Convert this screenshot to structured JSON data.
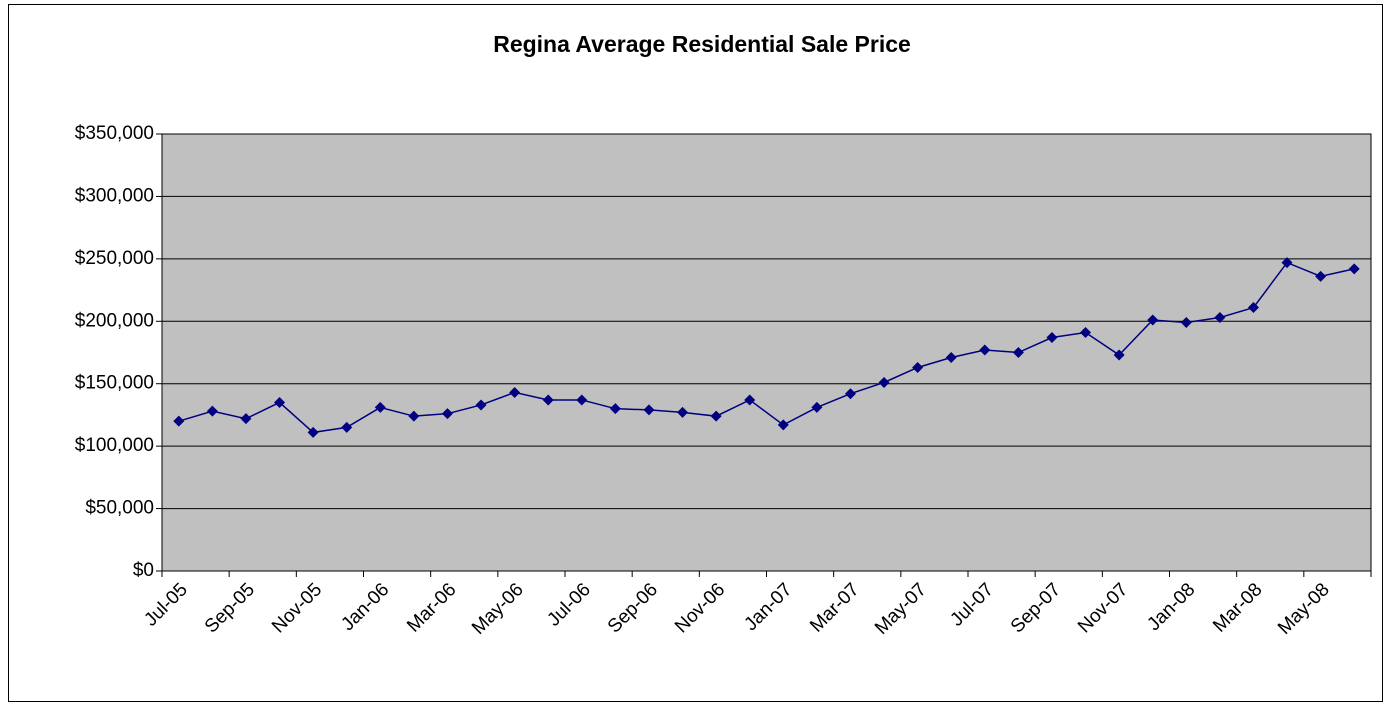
{
  "chart_data": {
    "type": "line",
    "title": "Regina Average Residential Sale Price",
    "categories": [
      "Jul-05",
      null,
      "Sep-05",
      null,
      "Nov-05",
      null,
      "Jan-06",
      null,
      "Mar-06",
      null,
      "May-06",
      null,
      "Jul-06",
      null,
      "Sep-06",
      null,
      "Nov-06",
      null,
      "Jan-07",
      null,
      "Mar-07",
      null,
      "May-07",
      null,
      "Jul-07",
      null,
      "Sep-07",
      null,
      "Nov-07",
      null,
      "Jan-08",
      null,
      "Mar-08",
      null,
      "May-08",
      null
    ],
    "series": [
      {
        "color": "#000080",
        "values": [
          120000,
          128000,
          122000,
          135000,
          111000,
          115000,
          131000,
          124000,
          126000,
          133000,
          143000,
          137000,
          137000,
          130000,
          129000,
          127000,
          124000,
          137000,
          117000,
          131000,
          142000,
          151000,
          163000,
          171000,
          177000,
          175000,
          187000,
          191000,
          173000,
          201000,
          199000,
          203000,
          211000,
          247000,
          236000,
          242000
        ]
      }
    ],
    "ylim": [
      0,
      350000
    ],
    "yticks": [
      {
        "value": 0,
        "label": "$0"
      },
      {
        "value": 50000,
        "label": "$50,000"
      },
      {
        "value": 100000,
        "label": "$100,000"
      },
      {
        "value": 150000,
        "label": "$150,000"
      },
      {
        "value": 200000,
        "label": "$200,000"
      },
      {
        "value": 250000,
        "label": "$250,000"
      },
      {
        "value": 300000,
        "label": "$300,000"
      },
      {
        "value": 350000,
        "label": "$350,000"
      }
    ],
    "grid": true,
    "plot_background": "#c0c0c0"
  }
}
